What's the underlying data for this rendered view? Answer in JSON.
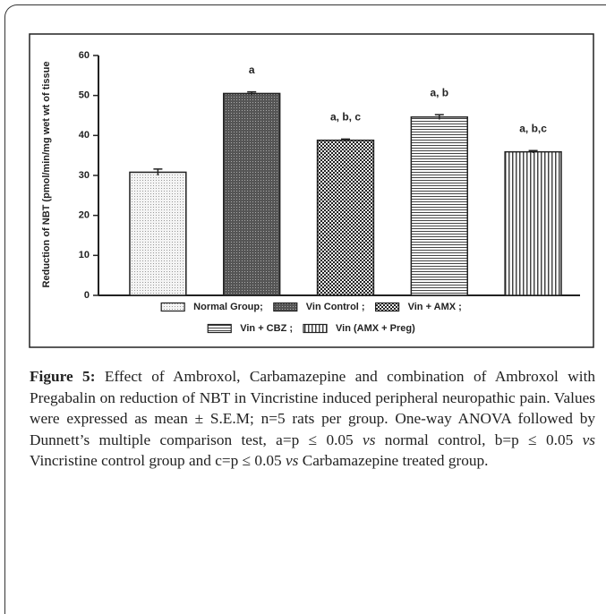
{
  "chart_data": {
    "type": "bar",
    "ylabel": "Reduction of NBT (pmol/min/mg wet wt of tissue",
    "categories": [
      "Normal Group;",
      "Vin Control ;",
      "Vin + AMX ;",
      "Vin + CBZ ;",
      "Vin (AMX + Preg)"
    ],
    "values": [
      30.8,
      50.5,
      38.8,
      44.6,
      35.9
    ],
    "errors": [
      0.8,
      0.4,
      0.3,
      0.6,
      0.3
    ],
    "bar_labels": [
      null,
      "a",
      "a, b, c",
      "a, b",
      "a, b,c"
    ],
    "patterns": [
      "dots",
      "dark",
      "checker",
      "hlines",
      "vlines"
    ],
    "ylim": [
      0,
      60
    ],
    "yticks": [
      0,
      10,
      20,
      30,
      40,
      50,
      60
    ]
  },
  "caption": {
    "label": "Figure 5:",
    "segments": [
      " Effect of Ambroxol, Carbamazepine and combination of Ambroxol with Pregabalin on reduction of NBT in Vincristine induced peripheral neuropathic pain. Values were expressed as mean ± S.E.M; n=5 rats per group. One-way ANOVA followed by Dunnett’s multiple comparison test, a=p ≤ 0.05 ",
      "vs",
      " normal control, b=p ≤ 0.05 ",
      "vs",
      " Vincristine control group and c=p ≤ 0.05 ",
      "vs",
      " Carbamazepine treated group."
    ]
  }
}
